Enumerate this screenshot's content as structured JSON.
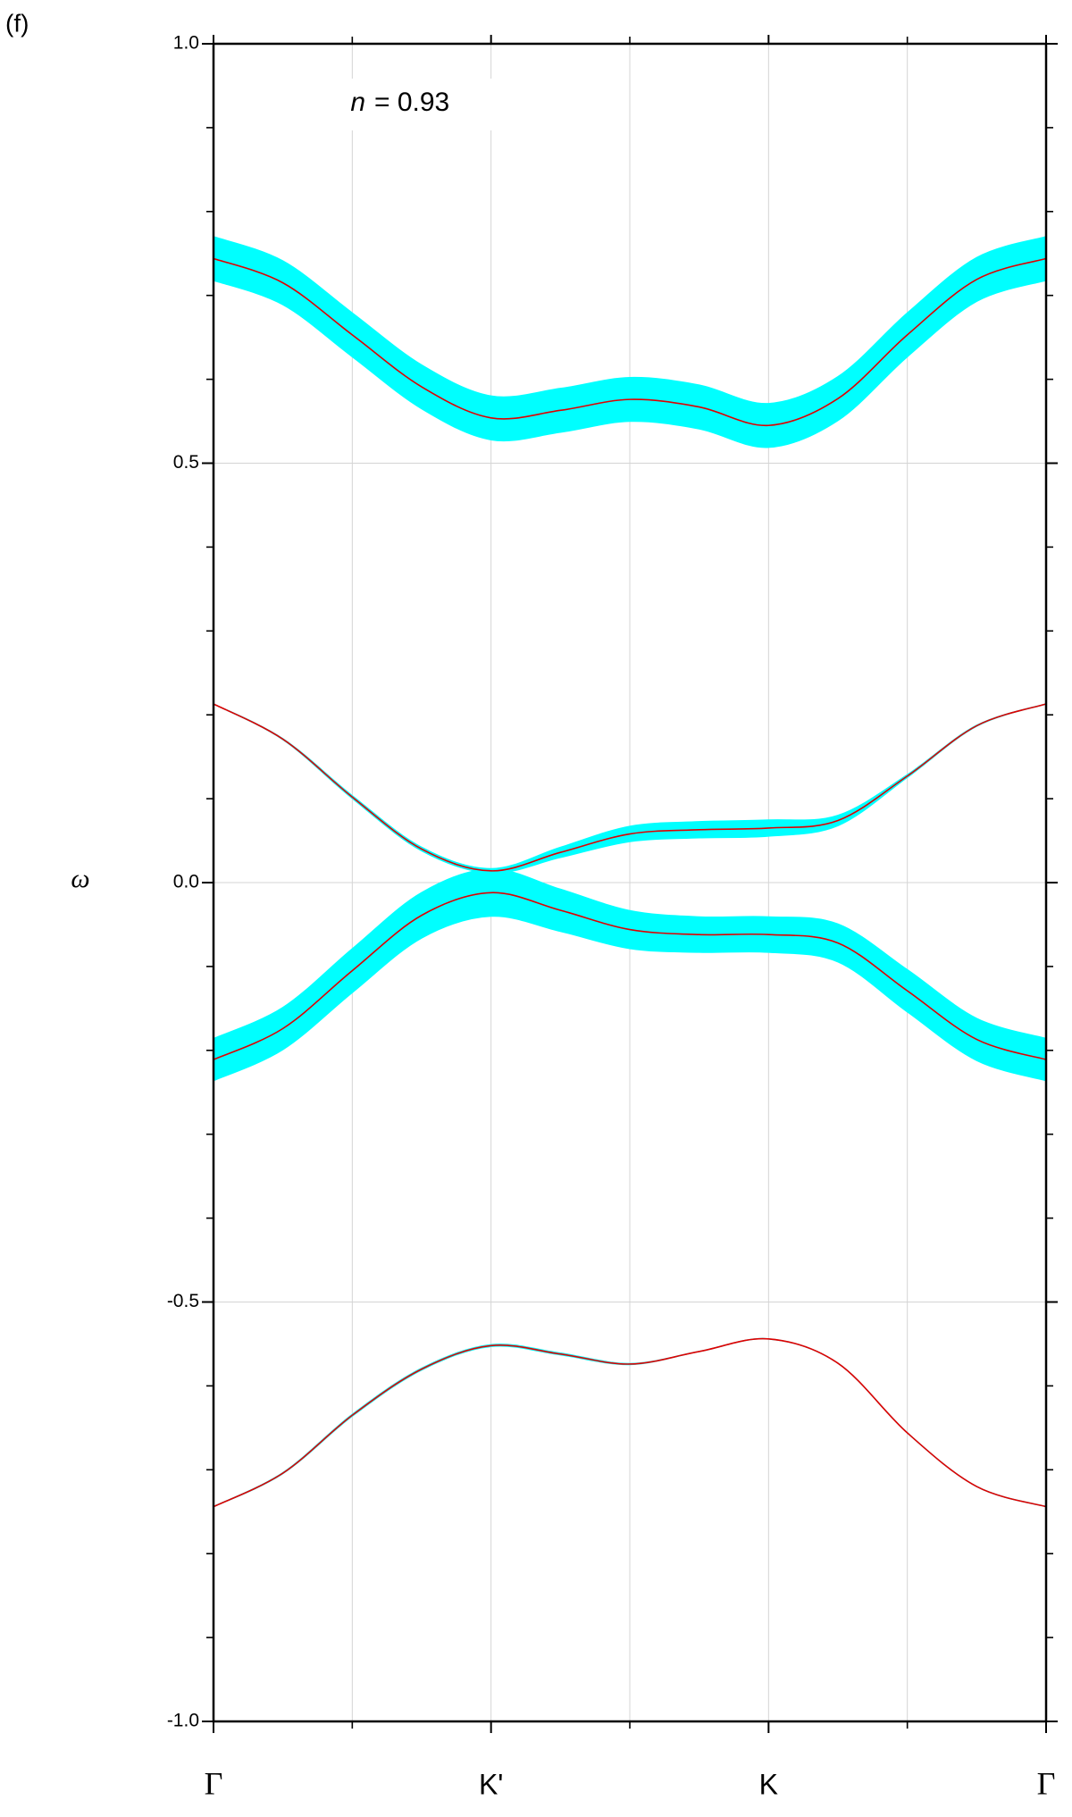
{
  "chart_data": {
    "type": "band-structure",
    "panel_label": "(f)",
    "annotation_variable": "n",
    "annotation_value": "= 0.93",
    "ylabel": "ω",
    "x": [
      0,
      0.5,
      1,
      1.5,
      2,
      2.5,
      3,
      3.5,
      4,
      4.5,
      5,
      5.5,
      6
    ],
    "xlim": [
      0,
      6
    ],
    "xticks": [
      {
        "value": 0,
        "label": "Γ"
      },
      {
        "value": 2,
        "label": "K'"
      },
      {
        "value": 4,
        "label": "K"
      },
      {
        "value": 6,
        "label": "Γ"
      }
    ],
    "x_minor_ticks": [
      1,
      3,
      5
    ],
    "ylim": [
      -1.0,
      1.0
    ],
    "yticks": [
      {
        "value": -1,
        "label": "-1.0"
      },
      {
        "value": -0.5,
        "label": "-0.5"
      },
      {
        "value": 0,
        "label": "0.0"
      },
      {
        "value": 0.5,
        "label": "0.5"
      },
      {
        "value": 1,
        "label": "1.0"
      }
    ],
    "y_minor_ticks": [
      -0.9,
      -0.8,
      -0.7,
      -0.6,
      -0.4,
      -0.3,
      -0.2,
      -0.1,
      0.1,
      0.2,
      0.3,
      0.4,
      0.6,
      0.7,
      0.8,
      0.9
    ],
    "grid": true,
    "series": [
      {
        "color": "#e00000",
        "band_color": "#00ffff",
        "values": [
          0.744,
          0.715,
          0.653,
          0.591,
          0.554,
          0.563,
          0.576,
          0.567,
          0.545,
          0.577,
          0.653,
          0.719,
          0.744
        ],
        "weights": [
          0.052,
          0.052,
          0.052,
          0.052,
          0.052,
          0.052,
          0.052,
          0.052,
          0.052,
          0.052,
          0.052,
          0.052,
          0.052
        ]
      },
      {
        "color": "#e00000",
        "band_color": "#00ffff",
        "values": [
          0.213,
          0.171,
          0.102,
          0.04,
          0.014,
          0.036,
          0.058,
          0.063,
          0.065,
          0.074,
          0.127,
          0.187,
          0.213
        ],
        "weights": [
          0,
          0.001,
          0.003,
          0.004,
          0.005,
          0.012,
          0.018,
          0.019,
          0.019,
          0.012,
          0.003,
          0.001,
          0
        ]
      },
      {
        "color": "#e00000",
        "band_color": "#00ffff",
        "values": [
          -0.211,
          -0.174,
          -0.105,
          -0.039,
          -0.012,
          -0.033,
          -0.056,
          -0.062,
          -0.062,
          -0.072,
          -0.129,
          -0.187,
          -0.211
        ],
        "weights": [
          0.05,
          0.05,
          0.052,
          0.054,
          0.056,
          0.05,
          0.045,
          0.042,
          0.042,
          0.045,
          0.05,
          0.05,
          0.05
        ]
      },
      {
        "color": "#e00000",
        "band_color": "#00ffff",
        "values": [
          -0.744,
          -0.704,
          -0.635,
          -0.58,
          -0.552,
          -0.562,
          -0.574,
          -0.559,
          -0.544,
          -0.573,
          -0.656,
          -0.72,
          -0.744
        ],
        "weights": [
          0,
          0.001,
          0.002,
          0.002,
          0.002,
          0.002,
          0.001,
          0,
          0,
          0,
          0,
          0,
          0
        ]
      }
    ]
  }
}
